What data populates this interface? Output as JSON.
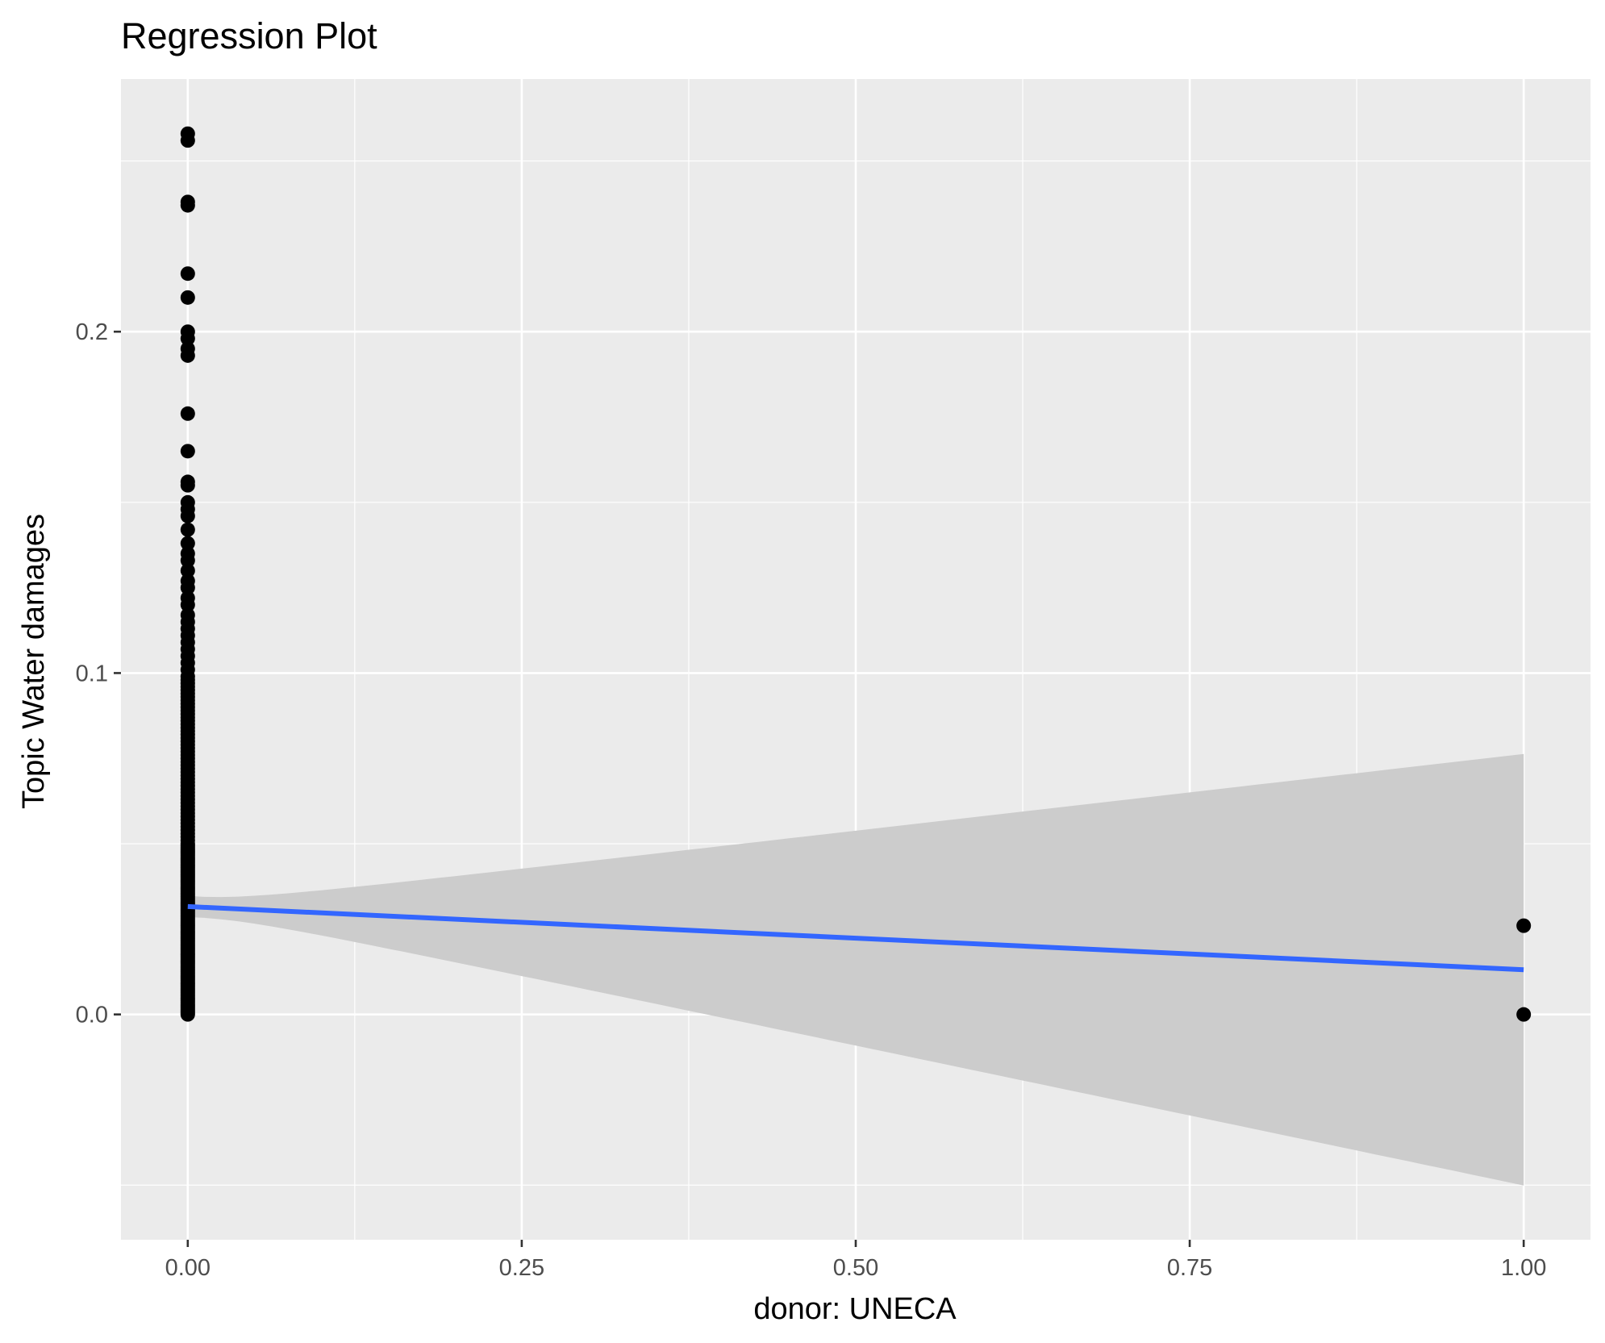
{
  "chart_data": {
    "type": "scatter",
    "title": "Regression Plot",
    "xlabel": "donor: UNECA",
    "ylabel": "Topic Water damages",
    "xlim": [
      -0.05,
      1.05
    ],
    "ylim": [
      -0.066,
      0.274
    ],
    "x_ticks": [
      {
        "value": 0.0,
        "label": "0.00"
      },
      {
        "value": 0.25,
        "label": "0.25"
      },
      {
        "value": 0.5,
        "label": "0.50"
      },
      {
        "value": 0.75,
        "label": "0.75"
      },
      {
        "value": 1.0,
        "label": "1.00"
      }
    ],
    "y_ticks": [
      {
        "value": 0.0,
        "label": "0.0"
      },
      {
        "value": 0.1,
        "label": "0.1"
      },
      {
        "value": 0.2,
        "label": "0.2"
      }
    ],
    "grid": true,
    "colors": {
      "panel_background": "#ebebeb",
      "grid_line": "#ffffff",
      "points": "#000000",
      "fit_line": "#3366ff",
      "confidence_band": "#cccccc"
    },
    "points": {
      "x": [
        0,
        0,
        0,
        0,
        0,
        0,
        0,
        0,
        0,
        0,
        0,
        0,
        0,
        0,
        0,
        0,
        0,
        0,
        0,
        0,
        0,
        0,
        0,
        0,
        0,
        0,
        0,
        0,
        0,
        0,
        0,
        0,
        0,
        0,
        0,
        0,
        0,
        0,
        0,
        0,
        0,
        0,
        0,
        0,
        0,
        0,
        0,
        0,
        0,
        0,
        0,
        0,
        0,
        0,
        0,
        0,
        0,
        0,
        0,
        0,
        0,
        0,
        0,
        0,
        0,
        0,
        0,
        0,
        0,
        0,
        0,
        0,
        0,
        0,
        0,
        0,
        0,
        0,
        0,
        0,
        0,
        0,
        0,
        0,
        0,
        0,
        0,
        0,
        0,
        0,
        0,
        0,
        0,
        0,
        0,
        0,
        0,
        0,
        0,
        0,
        0,
        0,
        0,
        0,
        0,
        0,
        0,
        0,
        0,
        0,
        0,
        0,
        0,
        0,
        0,
        0,
        0,
        0,
        0,
        0,
        0,
        0,
        0,
        0,
        0,
        0,
        0,
        0,
        0,
        0,
        0,
        0,
        0,
        0,
        0,
        0,
        0,
        0,
        0,
        0,
        0,
        0,
        0,
        0,
        0,
        0,
        0,
        0,
        0,
        0,
        0,
        0,
        0,
        0,
        0,
        0,
        0,
        0,
        0,
        0,
        0,
        0,
        0,
        0,
        0,
        0,
        0,
        0,
        0,
        0,
        0,
        0,
        0,
        0,
        0,
        0,
        0,
        0,
        0,
        0,
        0,
        0,
        0,
        0,
        0,
        1,
        1
      ],
      "y": [
        0.258,
        0.256,
        0.238,
        0.237,
        0.217,
        0.21,
        0.2,
        0.198,
        0.195,
        0.193,
        0.176,
        0.165,
        0.156,
        0.155,
        0.15,
        0.148,
        0.146,
        0.142,
        0.138,
        0.135,
        0.133,
        0.13,
        0.127,
        0.125,
        0.122,
        0.12,
        0.117,
        0.115,
        0.113,
        0.111,
        0.109,
        0.107,
        0.105,
        0.103,
        0.101,
        0.099,
        0.098,
        0.097,
        0.096,
        0.095,
        0.094,
        0.093,
        0.092,
        0.091,
        0.09,
        0.089,
        0.088,
        0.087,
        0.086,
        0.085,
        0.084,
        0.083,
        0.082,
        0.081,
        0.08,
        0.079,
        0.078,
        0.077,
        0.076,
        0.075,
        0.074,
        0.073,
        0.072,
        0.071,
        0.07,
        0.069,
        0.068,
        0.067,
        0.066,
        0.065,
        0.064,
        0.063,
        0.062,
        0.061,
        0.06,
        0.059,
        0.058,
        0.057,
        0.056,
        0.055,
        0.054,
        0.053,
        0.052,
        0.051,
        0.05,
        0.049,
        0.048,
        0.047,
        0.046,
        0.045,
        0.044,
        0.043,
        0.042,
        0.041,
        0.04,
        0.039,
        0.038,
        0.037,
        0.036,
        0.035,
        0.034,
        0.033,
        0.032,
        0.031,
        0.03,
        0.029,
        0.028,
        0.027,
        0.026,
        0.025,
        0.024,
        0.023,
        0.022,
        0.021,
        0.02,
        0.019,
        0.018,
        0.017,
        0.016,
        0.015,
        0.014,
        0.013,
        0.012,
        0.011,
        0.01,
        0.009,
        0.008,
        0.007,
        0.006,
        0.005,
        0.004,
        0.003,
        0.002,
        0.001,
        0.0,
        0.0005,
        0.0015,
        0.0025,
        0.0035,
        0.0045,
        0.0055,
        0.0065,
        0.0075,
        0.0085,
        0.0095,
        0.0105,
        0.0115,
        0.0125,
        0.0135,
        0.0145,
        0.0155,
        0.0165,
        0.0175,
        0.0185,
        0.0195,
        0.0205,
        0.0215,
        0.0225,
        0.0235,
        0.0245,
        0.0255,
        0.0265,
        0.0275,
        0.0285,
        0.0295,
        0.0305,
        0.0315,
        0.0325,
        0.0335,
        0.0345,
        0.0355,
        0.0365,
        0.0375,
        0.0385,
        0.0395,
        0.0405,
        0.0415,
        0.0425,
        0.0435,
        0.0445,
        0.0455,
        0.0465,
        0.0475,
        0.0485,
        0.0495,
        0.026,
        0.0
      ]
    },
    "fit": {
      "method": "linear",
      "x": [
        0,
        1
      ],
      "y": [
        0.0316,
        0.0131
      ],
      "ci_lower": [
        0.0285,
        -0.05
      ],
      "ci_upper": [
        0.0347,
        0.0763
      ]
    }
  }
}
